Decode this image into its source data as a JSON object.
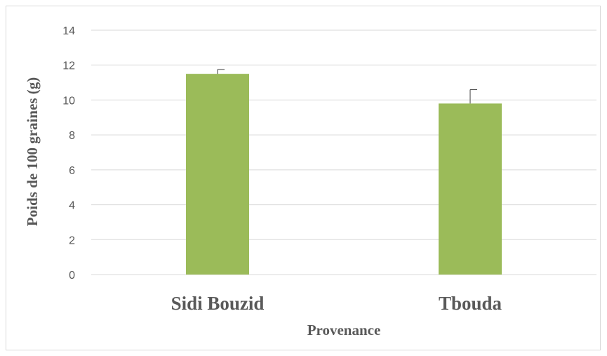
{
  "chart_data": {
    "type": "bar",
    "title": "",
    "xlabel": "Provenance",
    "ylabel": "Poids de 100 graines (g)",
    "categories": [
      "Sidi Bouzid",
      "Tbouda"
    ],
    "values": [
      11.5,
      9.8
    ],
    "errors": [
      0.25,
      0.8
    ],
    "ylim": [
      0,
      14
    ],
    "yticks": [
      0,
      2,
      4,
      6,
      8,
      10,
      12,
      14
    ],
    "ytick_labels": [
      "0",
      "2",
      "4",
      "6",
      "8",
      "10",
      "12",
      "14"
    ],
    "grid": true,
    "legend": "none",
    "bar_color": "#9BBB59",
    "gridline_color": "#d9d9d9",
    "error_bar_color": "#595959"
  }
}
